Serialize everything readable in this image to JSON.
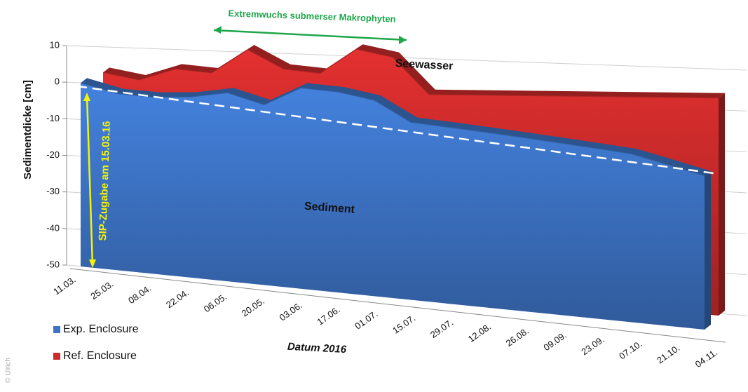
{
  "chart_data": {
    "type": "area3d",
    "title": "Extremwuchs submerser Makrophyten",
    "annotations": [
      "Seewasser",
      "Sediment",
      "SIP-Zugabe am 15.03.16"
    ],
    "copyright": "© Ulrich",
    "xlabel": "Datum 2016",
    "ylabel": "Sedimentdicke [cm]",
    "categories": [
      "11.03.",
      "25.03.",
      "08.04.",
      "22.04.",
      "06.05.",
      "20.05.",
      "03.06.",
      "17.06.",
      "01.07.",
      "15.07.",
      "29.07.",
      "12.08.",
      "26.08.",
      "09.09.",
      "23.09.",
      "07.10.",
      "21.10.",
      "04.11."
    ],
    "series": [
      {
        "name": "Exp. Enclosure",
        "color": "#3d74c6",
        "values": [
          0,
          -3,
          -4,
          -4,
          -3,
          -6,
          -2,
          -3,
          -5,
          -10,
          -11,
          -12,
          -13,
          -14,
          -15,
          -16,
          -18,
          -20
        ]
      },
      {
        "name": "Ref. Enclosure",
        "color": "#cc2b2b",
        "values": [
          2,
          0,
          3,
          2,
          8,
          3,
          2,
          8,
          6,
          -3,
          -3,
          -3,
          -3,
          -3,
          -3,
          -3,
          -3,
          -3
        ]
      }
    ],
    "ylim": [
      -50,
      10
    ],
    "yticks": [
      10,
      0,
      -10,
      -20,
      -30,
      -40,
      -50
    ],
    "grid": true,
    "legend": "lower left"
  }
}
